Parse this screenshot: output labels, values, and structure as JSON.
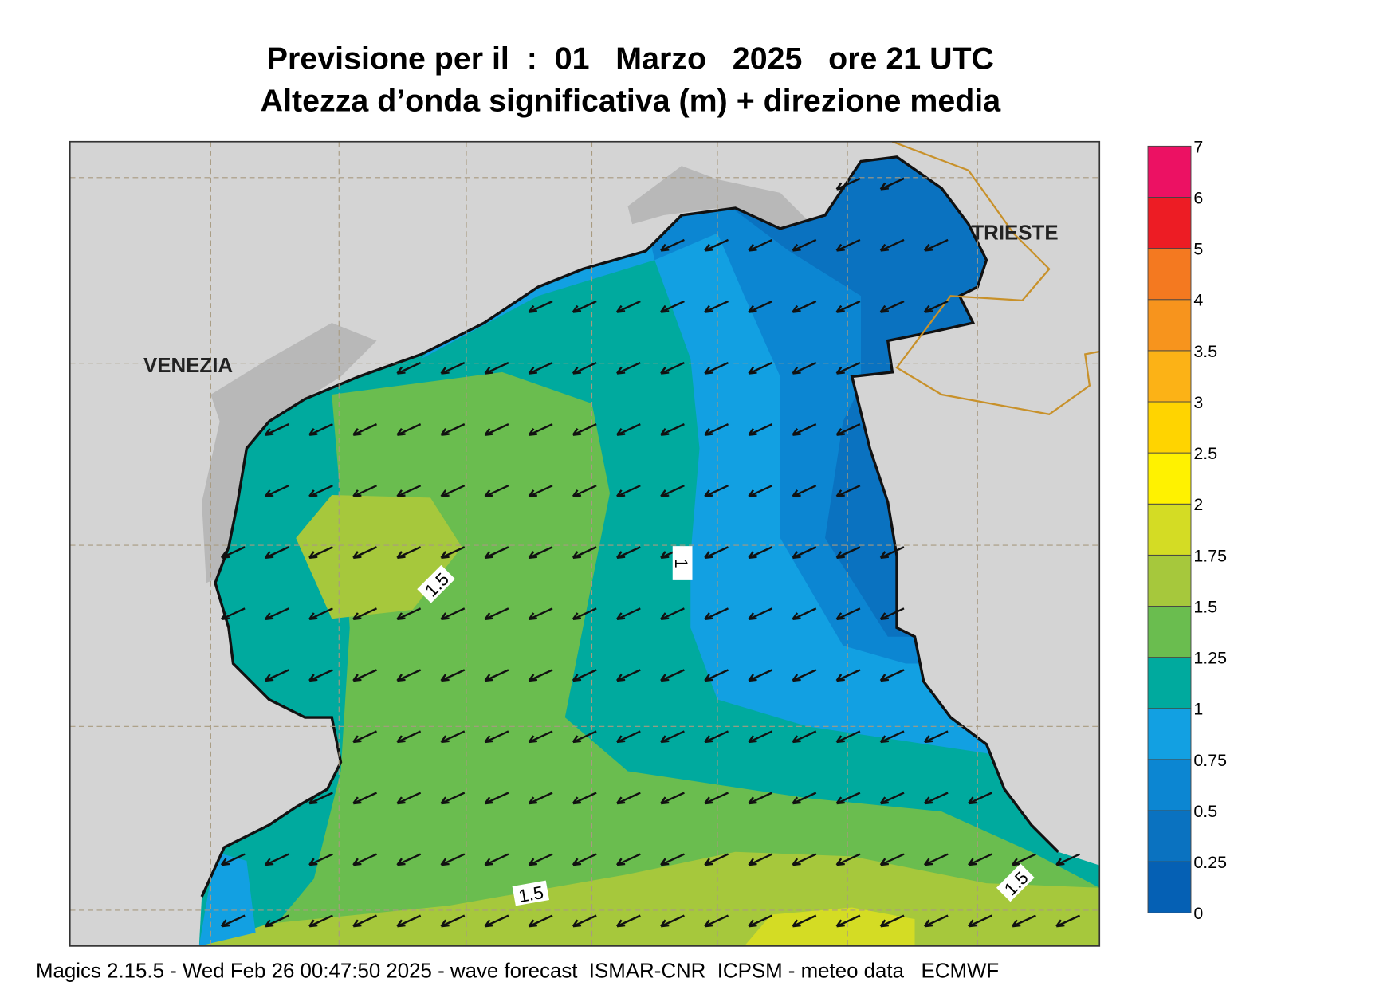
{
  "header": {
    "line1": "Previsione per il  :  01   Marzo   2025   ore 21 UTC",
    "line2": "Altezza d’onda significativa (m) + direzione media"
  },
  "map": {
    "places": [
      "VENEZIA",
      "TRIESTE"
    ],
    "contour_labels": [
      "1.5",
      "1",
      "1.5",
      "1.5"
    ]
  },
  "legend": {
    "levels": [
      0,
      0.25,
      0.5,
      0.75,
      1,
      1.25,
      1.5,
      1.75,
      2,
      2.5,
      3,
      3.5,
      4,
      5,
      6,
      7
    ],
    "colors": [
      "#0560b4",
      "#0a72c0",
      "#0c86d2",
      "#12a0e2",
      "#00aa9e",
      "#6abd4f",
      "#a6c83c",
      "#d4dc24",
      "#fff200",
      "#ffd400",
      "#fcb216",
      "#f7941d",
      "#f47920",
      "#ed1c24",
      "#ec1163"
    ]
  },
  "footer": "Magics 2.15.5 - Wed Feb 26 00:47:50 2025 - wave forecast  ISMAR-CNR  ICPSM - meteo data   ECMWF"
}
